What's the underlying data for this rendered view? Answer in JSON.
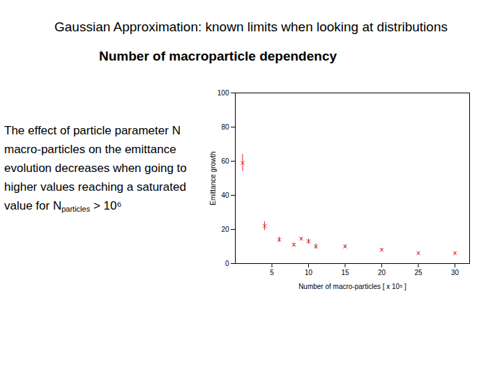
{
  "chart_data": {
    "type": "scatter",
    "title": "Gaussian Approximation: known limits when looking at distributions",
    "subtitle": "Number of macroparticle dependency",
    "caption": [
      {
        "text": "The effect of particle parameter N macro-particles on the emittance evolution decreases when going to higher values reaching a saturated value for N"
      },
      {
        "text": "particles",
        "subscript": true
      },
      {
        "text": " > 10⁶"
      }
    ],
    "xlabel": "Number of macro-particles [ x 10⁵ ]",
    "ylabel": "Emittance growth",
    "x": [
      1,
      4,
      6,
      8,
      9,
      10,
      11,
      15,
      20,
      25,
      30
    ],
    "values": [
      59,
      22,
      14,
      11,
      14.5,
      13,
      10,
      10,
      8,
      6,
      6
    ],
    "errors": [
      5,
      2.5,
      1.5,
      1,
      0.8,
      1.5,
      1.5,
      1,
      0.8,
      0.8,
      0.8
    ],
    "color": "#e02020",
    "marker": "x",
    "xlim": [
      0,
      32
    ],
    "xticks": [
      5,
      10,
      15,
      20,
      25,
      30
    ],
    "ylim": [
      0,
      100
    ],
    "yticks": [
      0,
      20,
      40,
      60,
      80,
      100
    ],
    "grid": false
  }
}
